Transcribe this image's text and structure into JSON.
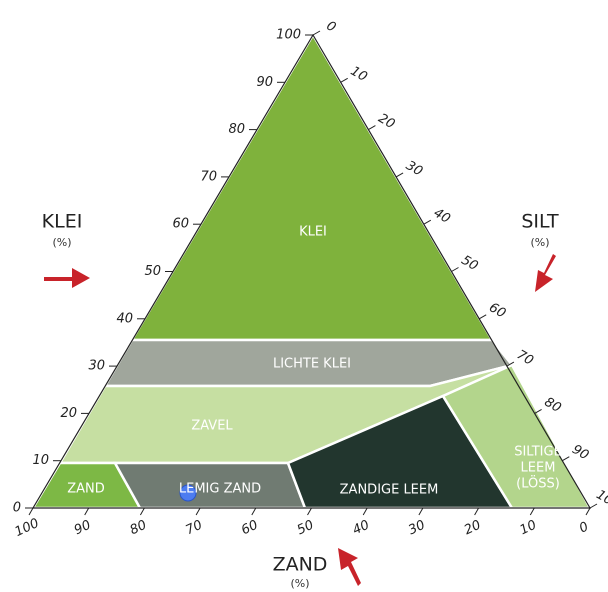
{
  "axes": {
    "left": {
      "title": "KLEI",
      "unit": "(%)",
      "ticks": [
        0,
        10,
        20,
        30,
        40,
        50,
        60,
        70,
        80,
        90,
        100
      ]
    },
    "right": {
      "title": "SILT",
      "unit": "(%)",
      "ticks": [
        0,
        10,
        20,
        30,
        40,
        50,
        60,
        70,
        80,
        90,
        100
      ]
    },
    "bottom": {
      "title": "ZAND",
      "unit": "(%)",
      "ticks": [
        100,
        90,
        80,
        70,
        60,
        50,
        40,
        30,
        20,
        10,
        0
      ]
    }
  },
  "regions": [
    {
      "lines": [
        "KLEI"
      ]
    },
    {
      "lines": [
        "LICHTE KLEI"
      ]
    },
    {
      "lines": [
        "ZAVEL"
      ]
    },
    {
      "lines": [
        "ZAND"
      ]
    },
    {
      "lines": [
        "LEMIG ZAND"
      ]
    },
    {
      "lines": [
        "ZANDIGE LEEM"
      ]
    },
    {
      "lines": [
        "SILTIGE",
        "LEEM",
        "(LÖSS)"
      ]
    }
  ]
}
